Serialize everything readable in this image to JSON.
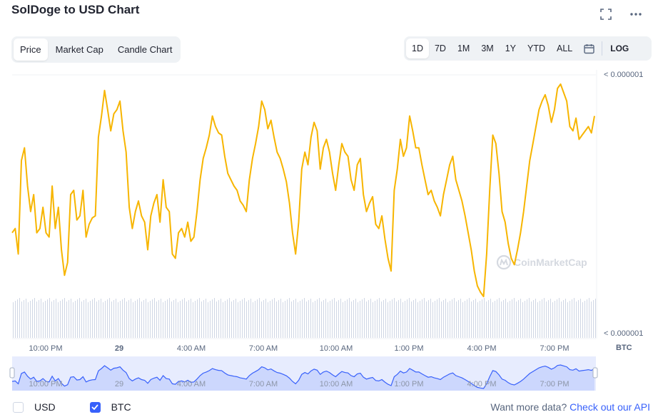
{
  "header": {
    "title": "SolDoge to USD Chart"
  },
  "tabs": [
    {
      "label": "Price",
      "active": true
    },
    {
      "label": "Market Cap",
      "active": false
    },
    {
      "label": "Candle Chart",
      "active": false
    }
  ],
  "ranges": [
    {
      "label": "1D",
      "active": true
    },
    {
      "label": "7D",
      "active": false
    },
    {
      "label": "1M",
      "active": false
    },
    {
      "label": "3M",
      "active": false
    },
    {
      "label": "1Y",
      "active": false
    },
    {
      "label": "YTD",
      "active": false
    },
    {
      "label": "ALL",
      "active": false
    }
  ],
  "log_label": "LOG",
  "watermark": "CoinMarketCap",
  "colors": {
    "line": "#f7b500",
    "nav_line": "#3861fb",
    "nav_fill": "#dde4fd",
    "volume": "#cfd6e4",
    "grid": "#eff2f5",
    "axis_text": "#58667e"
  },
  "chart_data": {
    "type": "line",
    "x_ticks": [
      "10:00 PM",
      "29",
      "4:00 AM",
      "7:00 AM",
      "10:00 AM",
      "1:00 PM",
      "4:00 PM",
      "7:00 PM"
    ],
    "y_ticks": [
      "< 0.000001",
      "< 0.000001"
    ],
    "y_unit": "BTC",
    "grid": true,
    "series": [
      {
        "name": "BTC",
        "values": [
          30,
          32,
          20,
          64,
          70,
          52,
          40,
          48,
          30,
          32,
          42,
          30,
          28,
          52,
          32,
          42,
          22,
          10,
          16,
          48,
          50,
          36,
          38,
          50,
          28,
          34,
          37,
          38,
          75,
          85,
          97,
          88,
          78,
          86,
          88,
          92,
          78,
          68,
          42,
          32,
          40,
          45,
          38,
          35,
          22,
          38,
          44,
          48,
          35,
          55,
          42,
          40,
          20,
          18,
          30,
          32,
          28,
          35,
          26,
          28,
          40,
          55,
          65,
          70,
          76,
          85,
          80,
          77,
          76,
          66,
          58,
          55,
          52,
          50,
          45,
          43,
          40,
          55,
          65,
          72,
          80,
          92,
          88,
          79,
          83,
          75,
          68,
          65,
          60,
          54,
          44,
          30,
          20,
          35,
          60,
          68,
          62,
          75,
          82,
          78,
          60,
          70,
          74,
          68,
          58,
          50,
          62,
          72,
          68,
          66,
          55,
          50,
          62,
          65,
          48,
          40,
          44,
          47,
          34,
          32,
          38,
          27,
          18,
          12,
          50,
          60,
          74,
          66,
          70,
          85,
          78,
          70,
          70,
          62,
          55,
          48,
          50,
          45,
          42,
          38,
          48,
          55,
          62,
          66,
          55,
          50,
          45,
          38,
          30,
          22,
          12,
          5,
          2,
          0,
          20,
          50,
          76,
          72,
          58,
          40,
          35,
          25,
          18,
          15,
          22,
          30,
          40,
          52,
          64,
          72,
          80,
          88,
          92,
          95,
          90,
          82,
          88,
          98,
          100,
          96,
          92,
          80,
          78,
          84,
          74,
          76,
          78,
          80,
          77,
          85
        ]
      }
    ]
  },
  "legend": [
    {
      "label": "USD",
      "checked": false
    },
    {
      "label": "BTC",
      "checked": true
    }
  ],
  "footer": {
    "prefix": "Want more data? ",
    "link": "Check out our API"
  }
}
